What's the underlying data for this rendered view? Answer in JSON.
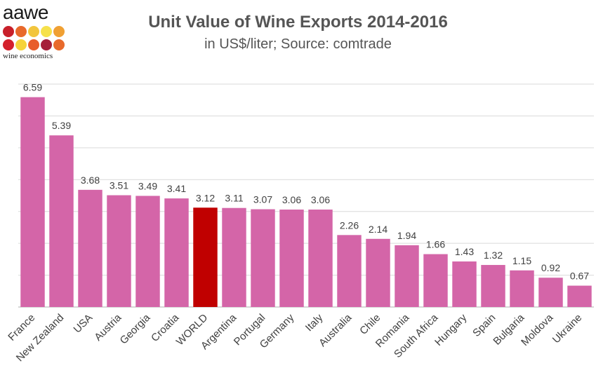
{
  "logo": {
    "text": "aawe",
    "subtitle": "wine economics",
    "dot_colors": [
      "#c8202a",
      "#e8692b",
      "#f2c53d",
      "#f6e14b",
      "#f0a033",
      "#d4212b",
      "#f6d33a",
      "#e85d2a",
      "#a51f3a",
      "#e86a2c"
    ]
  },
  "chart_data": {
    "type": "bar",
    "title": "Unit Value of Wine Exports 2014-2016",
    "subtitle": "in US$/liter; Source: comtrade",
    "xlabel": "",
    "ylabel": "",
    "ylim": [
      0,
      7
    ],
    "grid": true,
    "categories": [
      "France",
      "New Zealand",
      "USA",
      "Austria",
      "Georgia",
      "Croatia",
      "WORLD",
      "Argentina",
      "Portugal",
      "Germany",
      "Italy",
      "Australia",
      "Chile",
      "Romania",
      "South Africa",
      "Hungary",
      "Spain",
      "Bulgaria",
      "Moldova",
      "Ukraine"
    ],
    "values": [
      6.59,
      5.39,
      3.68,
      3.51,
      3.49,
      3.41,
      3.12,
      3.11,
      3.07,
      3.06,
      3.06,
      2.26,
      2.14,
      1.94,
      1.66,
      1.43,
      1.32,
      1.15,
      0.92,
      0.67
    ],
    "value_labels": [
      "6.59",
      "5.39",
      "3.68",
      "3.51",
      "3.49",
      "3.41",
      "3.12",
      "3.11",
      "3.07",
      "3.06",
      "3.06",
      "2.26",
      "2.14",
      "1.94",
      "1.66",
      "1.43",
      "1.32",
      "1.15",
      "0.92",
      "0.67"
    ],
    "colors": {
      "bar": "#d465a8",
      "highlight": "#c00000",
      "grid": "#d9d9d9",
      "axis": "#bfbfbf",
      "text": "#404040"
    },
    "highlight_category": "WORLD"
  }
}
